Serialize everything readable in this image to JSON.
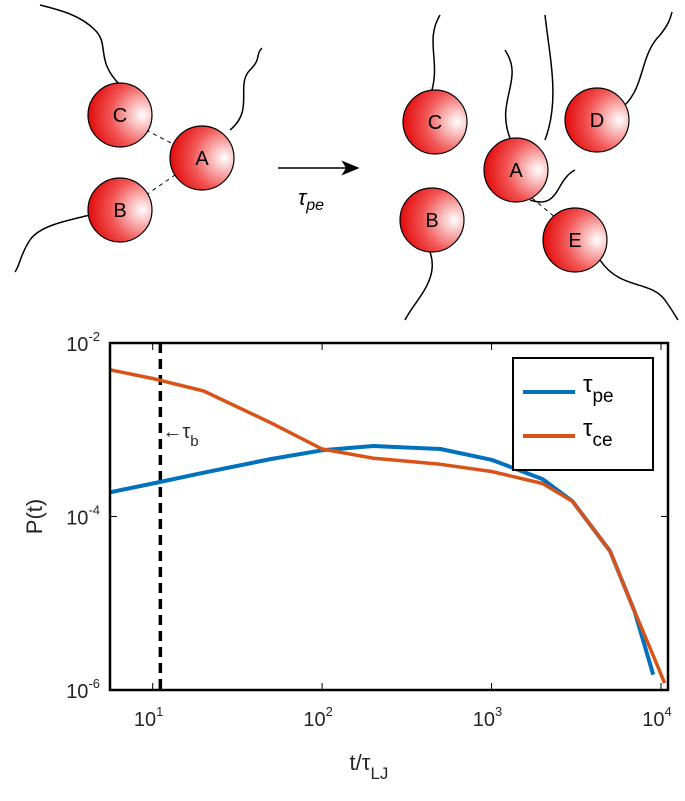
{
  "diagram": {
    "before": [
      "C",
      "A",
      "B"
    ],
    "after": [
      "C",
      "B",
      "A",
      "D",
      "E"
    ],
    "arrow_label": {
      "symbol": "τ",
      "subscript": "pe"
    }
  },
  "chart_data": {
    "type": "line",
    "ylabel": "P(t)",
    "xlabel": {
      "text": "t/τ",
      "subscript": "LJ"
    },
    "x": [
      5.6,
      10,
      20,
      50,
      100,
      200,
      500,
      1000,
      2000,
      3000,
      5000,
      7000,
      9000,
      10500
    ],
    "series": [
      {
        "name": "τ",
        "name_subscript": "pe",
        "color": "#0072bd",
        "values": [
          0.00019,
          0.00024,
          0.00032,
          0.00046,
          0.00058,
          0.00065,
          0.0006,
          0.00045,
          0.00027,
          0.00015,
          4e-05,
          8e-06,
          1.5e-06,
          null
        ]
      },
      {
        "name": "τ",
        "name_subscript": "ce",
        "color": "#d95319",
        "values": [
          0.0049,
          0.0039,
          0.0028,
          0.0012,
          0.0006,
          0.00047,
          0.0004,
          0.00033,
          0.00024,
          0.00015,
          4e-05,
          8e-06,
          2.5e-06,
          1.2e-06
        ]
      }
    ],
    "xlim": [
      5.6,
      11000
    ],
    "ylim": [
      1e-06,
      0.01
    ],
    "xscale": "log",
    "yscale": "log",
    "xticks": [
      {
        "value": 10,
        "label": "10",
        "exponent": "1"
      },
      {
        "value": 100,
        "label": "10",
        "exponent": "2"
      },
      {
        "value": 1000,
        "label": "10",
        "exponent": "3"
      },
      {
        "value": 10000,
        "label": "10",
        "exponent": "4"
      }
    ],
    "yticks": [
      {
        "value": 1e-06,
        "label": "10",
        "exponent": "-6"
      },
      {
        "value": 0.0001,
        "label": "10",
        "exponent": "-4"
      },
      {
        "value": 0.01,
        "label": "10",
        "exponent": "-2"
      }
    ],
    "vline": {
      "value": 11.1,
      "color": "#000000",
      "label": "←τ",
      "label_subscript": "b"
    },
    "legend": "northeast"
  }
}
